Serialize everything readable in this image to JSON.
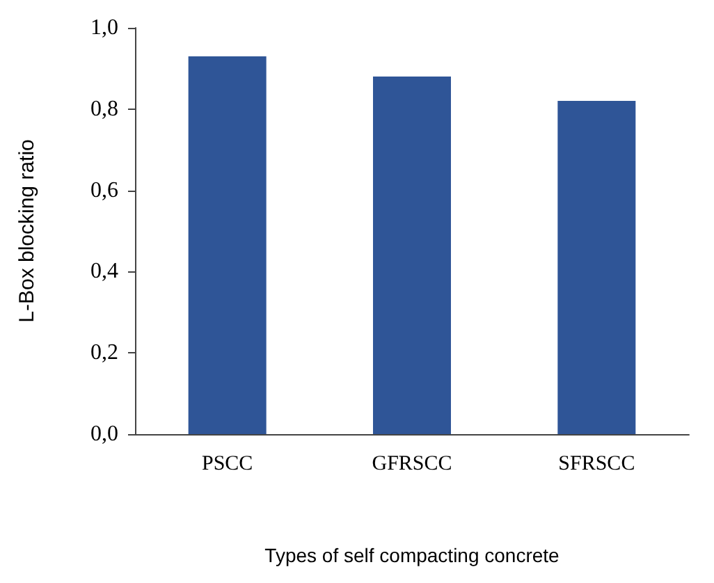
{
  "chart_data": {
    "type": "bar",
    "xlabel": "Types of self compacting concrete",
    "ylabel": "L-Box blocking ratio",
    "categories": [
      "PSCC",
      "GFRSCC",
      "SFRSCC"
    ],
    "values": [
      0.93,
      0.88,
      0.82
    ],
    "color": "#2f5597",
    "ylim": [
      0,
      1
    ],
    "yticks": [
      {
        "value": 0,
        "label": "0,0"
      },
      {
        "value": 0.2,
        "label": "0,2"
      },
      {
        "value": 0.4,
        "label": "0,4"
      },
      {
        "value": 0.6,
        "label": "0,6"
      },
      {
        "value": 0.8,
        "label": "0,8"
      },
      {
        "value": 1,
        "label": "1,0"
      }
    ],
    "grid": false
  }
}
